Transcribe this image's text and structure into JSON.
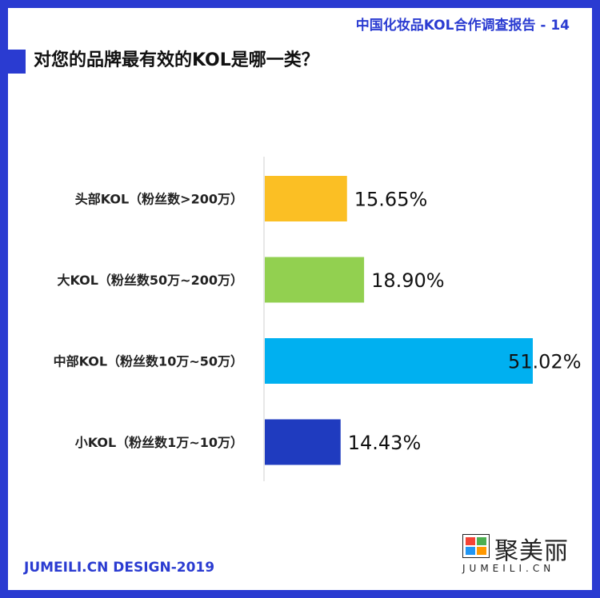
{
  "header": {
    "tag": "中国化妆品KOL合作调查报告 - 14"
  },
  "title": "对您的品牌最有效的KOL是哪一类？",
  "footer": {
    "text": "JUMEILI.CN DESIGN-2019"
  },
  "logo": {
    "name": "聚美丽",
    "sub": "JUMEILI.CN"
  },
  "colors": {
    "frame": "#2a3bd1",
    "bars": [
      "#fbbf24",
      "#92d050",
      "#00b0f0",
      "#1f3bbf"
    ]
  },
  "chart_data": {
    "type": "bar",
    "orientation": "horizontal",
    "categories": [
      "头部KOL（粉丝数>200万）",
      "大KOL（粉丝数50万~200万）",
      "中部KOL（粉丝数10万~50万）",
      "小KOL（粉丝数1万~10万）"
    ],
    "values": [
      15.65,
      18.9,
      51.02,
      14.43
    ],
    "value_labels": [
      "15.65%",
      "18.90%",
      "51.02%",
      "14.43%"
    ],
    "xlim": [
      0,
      51.02
    ],
    "grid": false
  }
}
